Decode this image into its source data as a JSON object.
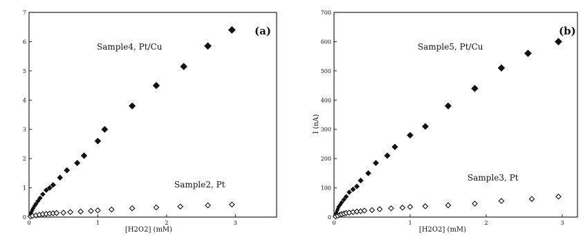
{
  "chart_data": [
    {
      "type": "scatter",
      "panel_label": "(a)",
      "xlabel": "[H2O2] (mM)",
      "ylabel": "",
      "xlim": [
        0,
        3.6
      ],
      "ylim": [
        0,
        7
      ],
      "xticks": [
        0,
        1,
        2,
        3
      ],
      "xtick_labels": [
        "0",
        "1",
        "2",
        "3"
      ],
      "yticks": [
        0,
        1,
        2,
        3,
        4,
        5,
        6,
        7
      ],
      "ytick_labels": [
        "0",
        "1",
        "2",
        "3",
        "4",
        "5",
        "6",
        "7"
      ],
      "grid": false,
      "legend": "none",
      "annotations": [
        "Sample4, Pt/Cu",
        "Sample2, Pt"
      ],
      "series": [
        {
          "name": "Sample4, Pt/Cu",
          "marker": "filled-diamond",
          "x": [
            0.01,
            0.02,
            0.03,
            0.04,
            0.05,
            0.06,
            0.08,
            0.1,
            0.13,
            0.16,
            0.2,
            0.25,
            0.3,
            0.35,
            0.45,
            0.55,
            0.7,
            0.8,
            1.0,
            1.1,
            1.5,
            1.85,
            2.25,
            2.6,
            2.95
          ],
          "y": [
            0.05,
            0.1,
            0.15,
            0.2,
            0.25,
            0.3,
            0.38,
            0.45,
            0.55,
            0.65,
            0.78,
            0.92,
            1.0,
            1.1,
            1.35,
            1.6,
            1.85,
            2.1,
            2.6,
            3.0,
            3.8,
            4.5,
            5.15,
            5.85,
            6.4
          ]
        },
        {
          "name": "Sample2, Pt",
          "marker": "open-diamond",
          "x": [
            0.02,
            0.05,
            0.1,
            0.15,
            0.2,
            0.25,
            0.3,
            0.35,
            0.4,
            0.5,
            0.6,
            0.75,
            0.9,
            1.0,
            1.2,
            1.5,
            1.85,
            2.2,
            2.6,
            2.95
          ],
          "y": [
            0.02,
            0.04,
            0.06,
            0.08,
            0.1,
            0.11,
            0.12,
            0.13,
            0.14,
            0.15,
            0.17,
            0.19,
            0.21,
            0.23,
            0.26,
            0.3,
            0.33,
            0.36,
            0.4,
            0.43
          ]
        }
      ]
    },
    {
      "type": "scatter",
      "panel_label": "(b)",
      "xlabel": "[H2O2] (mM)",
      "ylabel": "I (nA)",
      "xlim": [
        0,
        3.2
      ],
      "ylim": [
        0,
        7
      ],
      "xticks": [
        0,
        1,
        2,
        3
      ],
      "xtick_labels": [
        "0",
        "1",
        "2",
        "3"
      ],
      "yticks": [
        0,
        1,
        2,
        3,
        4,
        5,
        6,
        7
      ],
      "ytick_labels": [
        "0",
        "100",
        "200",
        "300",
        "400",
        "500",
        "600",
        "700"
      ],
      "grid": false,
      "legend": "none",
      "annotations": [
        "Sample5, Pt/Cu",
        "Sample3, Pt"
      ],
      "series": [
        {
          "name": "Sample5, Pt/Cu",
          "marker": "filled-diamond",
          "x": [
            0.01,
            0.02,
            0.03,
            0.04,
            0.05,
            0.06,
            0.08,
            0.1,
            0.13,
            0.16,
            0.2,
            0.25,
            0.3,
            0.35,
            0.45,
            0.55,
            0.7,
            0.8,
            1.0,
            1.2,
            1.5,
            1.85,
            2.2,
            2.55,
            2.95
          ],
          "y": [
            0.05,
            0.1,
            0.15,
            0.22,
            0.28,
            0.35,
            0.42,
            0.5,
            0.6,
            0.7,
            0.85,
            0.95,
            1.05,
            1.25,
            1.5,
            1.85,
            2.1,
            2.4,
            2.8,
            3.1,
            3.8,
            4.4,
            5.1,
            5.6,
            6.0
          ]
        },
        {
          "name": "Sample3, Pt",
          "marker": "open-diamond",
          "x": [
            0.02,
            0.05,
            0.08,
            0.1,
            0.13,
            0.16,
            0.2,
            0.25,
            0.3,
            0.35,
            0.4,
            0.5,
            0.6,
            0.75,
            0.9,
            1.0,
            1.2,
            1.5,
            1.85,
            2.2,
            2.6,
            2.95
          ],
          "y": [
            0.02,
            0.05,
            0.08,
            0.1,
            0.12,
            0.14,
            0.15,
            0.17,
            0.19,
            0.2,
            0.22,
            0.24,
            0.27,
            0.3,
            0.32,
            0.35,
            0.37,
            0.4,
            0.46,
            0.55,
            0.62,
            0.7
          ]
        }
      ]
    }
  ]
}
